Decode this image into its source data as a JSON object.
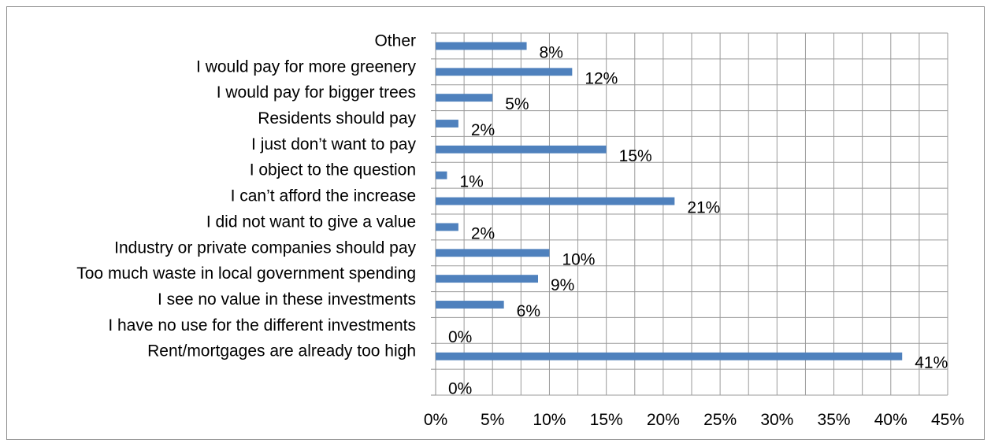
{
  "chart_data": {
    "type": "bar",
    "orientation": "horizontal",
    "categories": [
      "Other",
      "I would pay for more greenery",
      "I would pay for bigger trees",
      "Residents should pay",
      "I just don’t want to pay",
      "I object to the question",
      "I can’t afford the increase",
      "I did not want to give a value",
      "Industry or private companies should pay",
      "Too much waste in local government spending",
      "I see no value in these investments",
      "I have no use for the different investments",
      "Rent/mortgages are already too high",
      ""
    ],
    "values": [
      8,
      12,
      5,
      2,
      15,
      1,
      21,
      2,
      10,
      9,
      6,
      0,
      41,
      0
    ],
    "data_labels": [
      "8%",
      "12%",
      "5%",
      "2%",
      "15%",
      "1%",
      "21%",
      "2%",
      "10%",
      "9%",
      "6%",
      "0%",
      "41%",
      "0%"
    ],
    "x_ticks": [
      "0%",
      "5%",
      "10%",
      "15%",
      "20%",
      "25%",
      "30%",
      "35%",
      "40%",
      "45%"
    ],
    "xlim": [
      0,
      45
    ],
    "grid": true,
    "colors": {
      "bar": "#4f81bd",
      "grid": "#9a9a9a"
    }
  }
}
